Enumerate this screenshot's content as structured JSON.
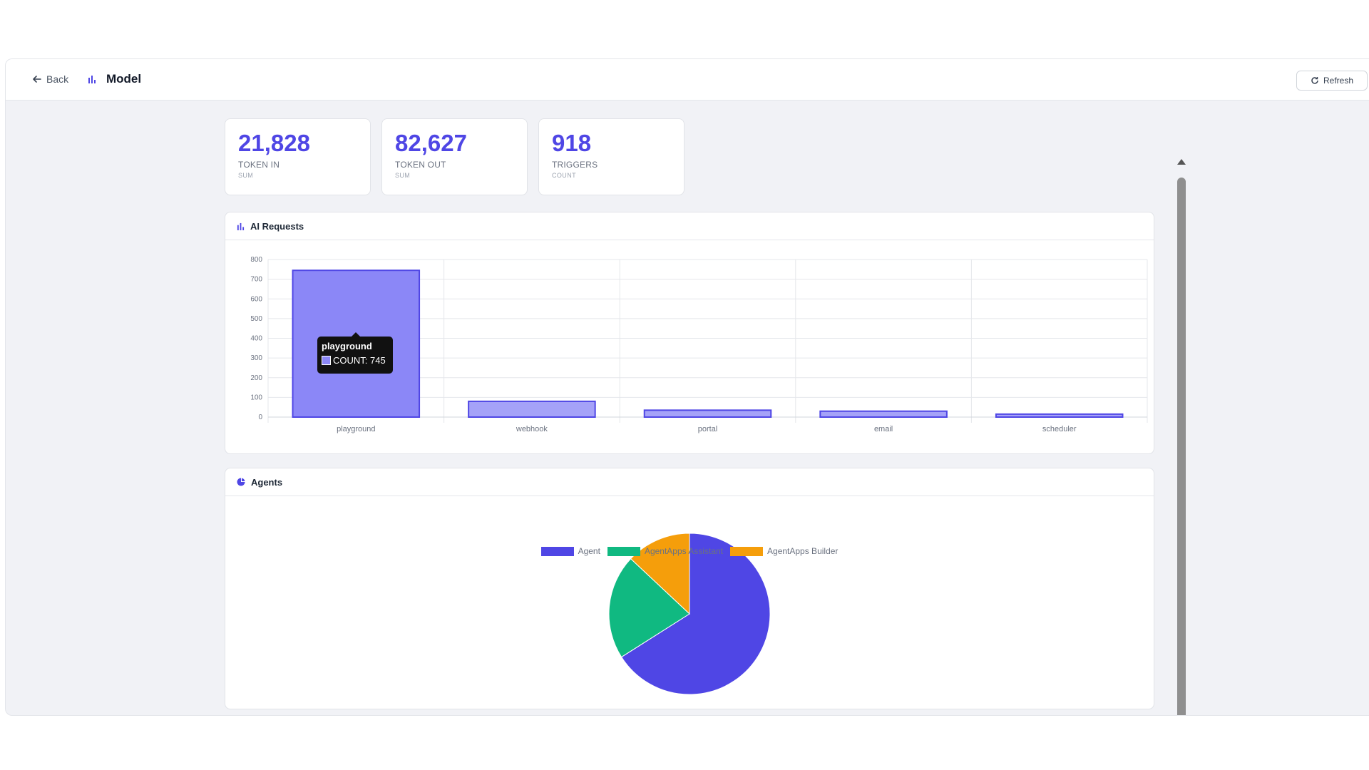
{
  "header": {
    "back_label": "Back",
    "title": "Model",
    "refresh_label": "Refresh"
  },
  "stats": [
    {
      "value": "21,828",
      "label": "TOKEN IN",
      "sub": "SUM"
    },
    {
      "value": "82,627",
      "label": "TOKEN OUT",
      "sub": "SUM"
    },
    {
      "value": "918",
      "label": "TRIGGERS",
      "sub": "COUNT"
    }
  ],
  "panels": {
    "requests_title": "AI Requests",
    "agents_title": "Agents"
  },
  "tooltip": {
    "title": "playground",
    "row": "COUNT: 745"
  },
  "colors": {
    "accent": "#4f46e5",
    "bar_active": "#8b87f7",
    "bar": "#a5a2f8",
    "agent": "#4f46e5",
    "assistant": "#10b981",
    "builder": "#f59e0b"
  },
  "chart_data": [
    {
      "type": "bar",
      "title": "AI Requests",
      "categories": [
        "playground",
        "webhook",
        "portal",
        "email",
        "scheduler"
      ],
      "series": [
        {
          "name": "COUNT",
          "values": [
            745,
            80,
            35,
            30,
            15
          ]
        }
      ],
      "ylim": [
        0,
        800
      ],
      "yticks": [
        0,
        100,
        200,
        300,
        400,
        500,
        600,
        700,
        800
      ],
      "grid": true
    },
    {
      "type": "pie",
      "title": "Agents",
      "labels": [
        "Agent",
        "AgentApps Assistant",
        "AgentApps Builder"
      ],
      "values": [
        66,
        21,
        13
      ],
      "legend": "top"
    }
  ]
}
